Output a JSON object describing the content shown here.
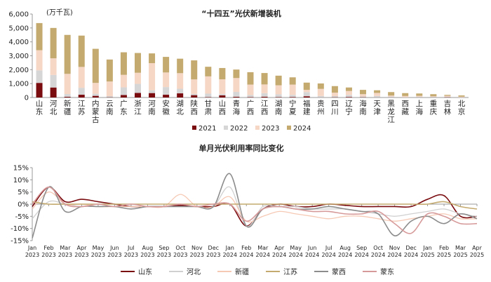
{
  "charts": {
    "top": {
      "chart_data": {
        "type": "bar",
        "stacked": true,
        "title": "“十四五”光伏新增装机",
        "unit_label": "(万千瓦)",
        "ylim": [
          0,
          6000
        ],
        "yticks": [
          "0",
          "1,000",
          "2,000",
          "3,000",
          "4,000",
          "5,000",
          "6,000"
        ],
        "categories": [
          "山东",
          "河北",
          "新疆",
          "江苏",
          "内蒙古",
          "云南",
          "广东",
          "浙江",
          "河南",
          "安徽",
          "湖北",
          "陕西",
          "甘肃",
          "山西",
          "青海",
          "广西",
          "江西",
          "湖南",
          "宁夏",
          "福建",
          "贵州",
          "四川",
          "辽宁",
          "海南",
          "天津",
          "黑龙江",
          "西藏",
          "上海",
          "重庆",
          "吉林",
          "北京"
        ],
        "series": [
          {
            "name": "2021",
            "color": "#7a0c10",
            "values": [
              1050,
              720,
              50,
              200,
              120,
              20,
              180,
              330,
              320,
              200,
              300,
              170,
              30,
              160,
              50,
              30,
              60,
              30,
              40,
              90,
              10,
              20,
              40,
              20,
              10,
              10,
              5,
              10,
              10,
              20,
              5
            ]
          },
          {
            "name": "2022",
            "color": "#d6d6d6",
            "values": [
              900,
              900,
              200,
              500,
              150,
              80,
              550,
              650,
              200,
              550,
              330,
              90,
              250,
              100,
              350,
              150,
              250,
              200,
              150,
              300,
              100,
              80,
              150,
              60,
              100,
              60,
              20,
              50,
              40,
              40,
              10
            ]
          },
          {
            "name": "2023",
            "color": "#f6d7c6",
            "values": [
              1450,
              1200,
              1450,
              1500,
              780,
              1050,
              900,
              800,
              1950,
              1050,
              1120,
              1040,
              1240,
              1050,
              1000,
              750,
              630,
              650,
              740,
              160,
              510,
              250,
              280,
              160,
              220,
              70,
              85,
              60,
              40,
              60,
              45
            ]
          },
          {
            "name": "2024",
            "color": "#c4aa6e",
            "values": [
              1950,
              2180,
              2800,
              2250,
              2450,
              1580,
              1620,
              1420,
              700,
              1120,
              1040,
              1370,
              690,
              810,
              610,
              890,
              820,
              690,
              520,
              520,
              390,
              470,
              250,
              310,
              190,
              250,
              205,
              170,
              150,
              70,
              90
            ]
          }
        ],
        "legend": "bottom"
      }
    },
    "bottom": {
      "chart_data": {
        "type": "line",
        "title": "单月光伏利用率同比变化",
        "ylim": [
          -15,
          15
        ],
        "yticks": [
          "-15%",
          "-10%",
          "-5%",
          "0%",
          "5%",
          "10%",
          "15%"
        ],
        "x_labels": [
          [
            "Jan",
            "2023"
          ],
          [
            "Feb",
            "2023"
          ],
          [
            "Mar",
            "2023"
          ],
          [
            "Apr",
            "2023"
          ],
          [
            "May",
            "2023"
          ],
          [
            "Jun",
            "2023"
          ],
          [
            "Jul",
            "2023"
          ],
          [
            "Aug",
            "2023"
          ],
          [
            "Sep",
            "2023"
          ],
          [
            "Oct",
            "2023"
          ],
          [
            "Nov",
            "2023"
          ],
          [
            "Dec",
            "2023"
          ],
          [
            "Jan",
            "2024"
          ],
          [
            "Feb",
            "2024"
          ],
          [
            "Mar",
            "2024"
          ],
          [
            "Apr",
            "2024"
          ],
          [
            "May",
            "2024"
          ],
          [
            "Jun",
            "2024"
          ],
          [
            "Jul",
            "2024"
          ],
          [
            "Aug",
            "2024"
          ],
          [
            "Sep",
            "2024"
          ],
          [
            "Oct",
            "2024"
          ],
          [
            "Nov",
            "2024"
          ],
          [
            "Dec",
            "2024"
          ],
          [
            "Jan",
            "2025"
          ],
          [
            "Feb",
            "2025"
          ],
          [
            "Mar",
            "2025"
          ],
          [
            "Apr",
            "2025"
          ]
        ],
        "series": [
          {
            "name": "山东",
            "color": "#7a0c10",
            "width": 1.6,
            "values": [
              -1,
              7,
              1,
              2,
              1,
              0,
              -1,
              -1,
              -1,
              -0.5,
              -1,
              -1,
              0,
              -9,
              -2,
              0,
              -1,
              -1,
              0,
              -0.5,
              -1,
              -1,
              -1,
              -1,
              2,
              3.5,
              -5,
              -5
            ]
          },
          {
            "name": "河北",
            "color": "#d0d0d0",
            "width": 1.3,
            "values": [
              -6,
              1,
              0,
              -1,
              0,
              -1,
              -1,
              -1,
              -1,
              -1,
              -1,
              -1,
              7,
              -9,
              -1,
              -1,
              -1,
              -2,
              -2,
              -2,
              -3,
              -4,
              -5,
              -4,
              -3,
              -2,
              -4,
              -5
            ]
          },
          {
            "name": "新疆",
            "color": "#f6c9b4",
            "width": 1.3,
            "values": [
              -2,
              5,
              0,
              0,
              -1,
              -1,
              -1,
              -1,
              -1,
              4,
              -1,
              -1,
              3,
              -7,
              -5,
              -3,
              -4,
              -5,
              -6,
              -5,
              -5,
              -6,
              -7,
              -6,
              -5,
              -4,
              -6,
              -6
            ]
          },
          {
            "name": "江苏",
            "color": "#c4aa6e",
            "width": 1.6,
            "values": [
              1,
              0,
              0,
              0,
              0,
              0,
              0,
              0,
              0,
              0,
              0,
              0,
              0,
              0,
              0,
              0,
              0,
              0,
              0,
              0,
              0,
              0,
              0,
              0,
              0,
              1,
              -1,
              -2
            ]
          },
          {
            "name": "蒙西",
            "color": "#8c8c8c",
            "width": 1.6,
            "values": [
              -14,
              7,
              -3,
              -1,
              -1,
              -1,
              -2,
              -1,
              -1,
              -1,
              -1,
              -1,
              12.5,
              -9,
              -2,
              -1,
              -2,
              -2,
              -1,
              -2,
              -3,
              -4,
              -13,
              -7,
              -5,
              -8,
              -4,
              -6
            ]
          },
          {
            "name": "蒙东",
            "color": "#d79a9a",
            "width": 1.6,
            "values": [
              0,
              7,
              0,
              -1,
              0,
              -1,
              0,
              -1,
              -1,
              0,
              -1,
              0,
              0,
              -7,
              -2,
              -1,
              -2,
              -3,
              -3,
              -4,
              -4,
              -3,
              -8,
              -12,
              -4,
              -5,
              -8,
              -8
            ]
          }
        ],
        "legend": "bottom"
      }
    }
  }
}
